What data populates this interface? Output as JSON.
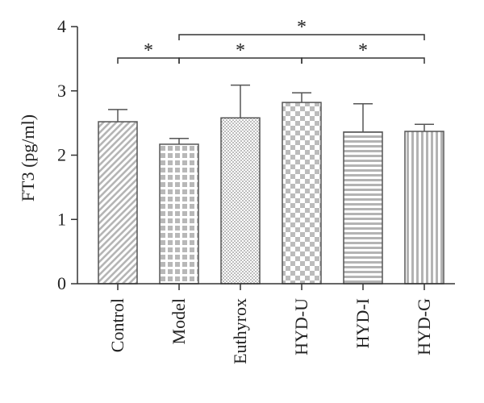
{
  "chart_data": {
    "type": "bar",
    "title": "",
    "xlabel": "",
    "ylabel": "FT3 (pg/ml)",
    "ylim": [
      0,
      4
    ],
    "yticks": [
      0,
      1,
      2,
      3,
      4
    ],
    "grid": false,
    "legend": "none",
    "categories": [
      "Control",
      "Model",
      "Euthyrox",
      "HYD-U",
      "HYD-I",
      "HYD-G"
    ],
    "values": [
      2.52,
      2.17,
      2.58,
      2.82,
      2.36,
      2.37
    ],
    "errors": [
      0.19,
      0.09,
      0.51,
      0.15,
      0.44,
      0.11
    ],
    "fill_patterns": [
      "diagonal-stripes",
      "square-grid",
      "fine-dots",
      "checkerboard",
      "horizontal-stripes",
      "vertical-stripes"
    ],
    "colors": {
      "bar_pattern": "#b9b9b9",
      "bar_background": "#ffffff",
      "bar_outline": "#555555",
      "axis": "#333333"
    },
    "significance": [
      {
        "from": "Control",
        "to": "Model",
        "label": "*"
      },
      {
        "from": "Model",
        "to": "HYD-U",
        "label": "*"
      },
      {
        "from": "Model",
        "to": "HYD-G",
        "label": "*"
      },
      {
        "from": "HYD-U",
        "to": "HYD-G",
        "label": "*"
      }
    ]
  }
}
